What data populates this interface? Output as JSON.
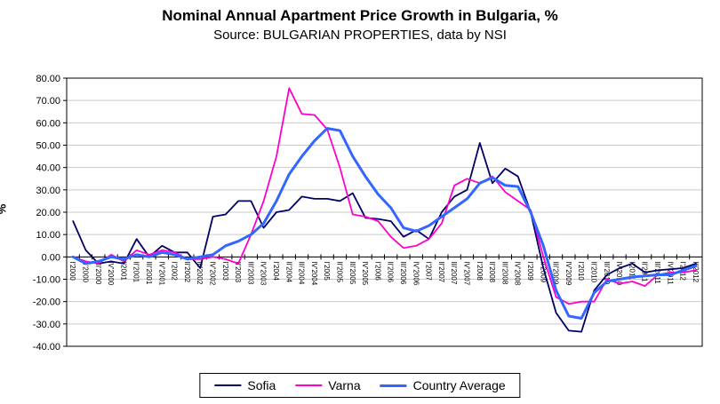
{
  "title": "Nominal Annual Apartment Price Growth in Bulgaria, %",
  "subtitle": "Source: BULGARIAN PROPERTIES, data by NSI",
  "chart_data": {
    "type": "line",
    "title": "Nominal Annual Apartment Price Growth in Bulgaria, %",
    "subtitle": "Source: BULGARIAN PROPERTIES, data by NSI",
    "xlabel": "",
    "ylabel": "%",
    "ylim": [
      -40,
      80
    ],
    "ytick_step": 10,
    "ytick_format_decimals": 2,
    "grid": true,
    "gridline_color": "#c9c9c9",
    "legend_position": "bottom",
    "categories": [
      "I'2000",
      "II'2000",
      "III'2000",
      "IV'2000",
      "I'2001",
      "II'2001",
      "III'2001",
      "IV'2001",
      "I'2002",
      "II'2002",
      "III'2002",
      "IV'2002",
      "I'2003",
      "II'2003",
      "III'2003",
      "IV'2003",
      "I'2004",
      "II'2004",
      "III'2004",
      "IV'2004",
      "I'2005",
      "II'2005",
      "III'2005",
      "IV'2005",
      "I'2006",
      "II'2006",
      "III'2006",
      "IV'2006",
      "I'2007",
      "II'2007",
      "III'2007",
      "IV'2007",
      "I'2008",
      "II'2008",
      "III'2008",
      "IV'2008",
      "I'2009",
      "II'2009",
      "III'2009",
      "IV'2009",
      "I'2010",
      "II'2010",
      "III'2010",
      "IV'2010",
      "I'2011",
      "II'2011",
      "III'2011",
      "IV'2011",
      "I'2012",
      "II'2012"
    ],
    "series": [
      {
        "name": "Sofia",
        "color": "#000066",
        "width": 1.8,
        "values": [
          16,
          3,
          -3,
          -2,
          -3,
          8,
          0,
          5,
          2,
          2,
          -5,
          18,
          19,
          25,
          25,
          13,
          20,
          21,
          27,
          26,
          26,
          25,
          28.5,
          17.5,
          17,
          16,
          9,
          12,
          8,
          20,
          27,
          30,
          51,
          33,
          39.5,
          36,
          20,
          -5,
          -25,
          -33,
          -33.5,
          -15,
          -8,
          -5,
          -3,
          -7,
          -6,
          -5.5,
          -5,
          -3
        ]
      },
      {
        "name": "Varna",
        "color": "#ff00cc",
        "width": 1.8,
        "values": [
          0,
          -2,
          -3,
          1,
          -2,
          3,
          1,
          3,
          2,
          -1,
          -1,
          0,
          -1,
          -3,
          10,
          25,
          45,
          75.5,
          64,
          63.5,
          57,
          40,
          19,
          18,
          16,
          9,
          4,
          5,
          8,
          15,
          32,
          35,
          33,
          36,
          29,
          25,
          21,
          0,
          -18,
          -21,
          -20,
          -20,
          -10,
          -12,
          -11,
          -13,
          -8,
          -7,
          -7,
          -6
        ]
      },
      {
        "name": "Country Average",
        "color": "#3366ff",
        "width": 3,
        "values": [
          0,
          -3,
          -2,
          0,
          -1,
          1,
          0,
          2,
          1,
          -1,
          0,
          1,
          5,
          7,
          10,
          15,
          25,
          37,
          45,
          52,
          57.5,
          56.5,
          45,
          36,
          28,
          22,
          13,
          11.5,
          14,
          18,
          22,
          26,
          33,
          35.5,
          32,
          31.5,
          20,
          5,
          -15,
          -26.5,
          -27.5,
          -16,
          -11,
          -10,
          -9,
          -8.5,
          -8,
          -8,
          -6,
          -4
        ]
      }
    ]
  }
}
